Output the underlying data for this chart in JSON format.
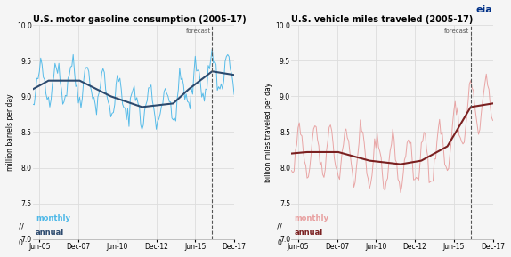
{
  "title_left": "U.S. motor gasoline consumption (2005-17)",
  "subtitle_left": "million barrels per day",
  "title_right": "U.S. vehicle miles traveled (2005-17)",
  "subtitle_right": "billion miles traveled per day",
  "ylim": [
    7.0,
    10.0
  ],
  "yticks": [
    7.0,
    7.5,
    8.0,
    8.5,
    9.0,
    9.5,
    10.0
  ],
  "xtick_labels": [
    "Jun-05",
    "Dec-07",
    "Jun-10",
    "Dec-12",
    "Jun-15",
    "Dec-17"
  ],
  "forecast_label": "forecast",
  "legend_left_monthly": "monthly",
  "legend_left_annual": "annual",
  "legend_right_monthly": "monthly",
  "legend_right_annual": "annual",
  "color_left_monthly": "#4db8e8",
  "color_left_annual": "#2c4a6e",
  "color_right_monthly": "#e8a0a0",
  "color_right_annual": "#7a2020",
  "background_color": "#f5f5f5",
  "grid_color": "#dddddd",
  "forecast_line_color": "#555555",
  "n_months": 156,
  "forecast_month": 138
}
